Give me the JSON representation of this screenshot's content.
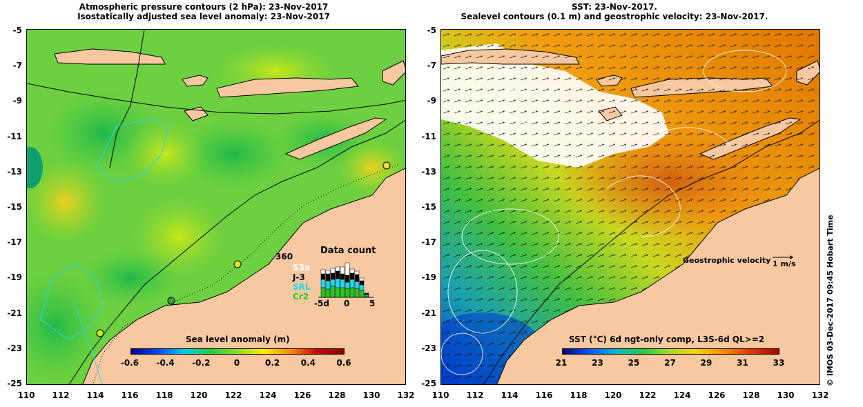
{
  "left": {
    "title1": "Atmospheric pressure contours (2 hPa): 23-Nov-2017",
    "title2": "Isostatically adjusted sea level anomaly: 23-Nov-2017",
    "colorbar_title": "Sea level anomaly (m)",
    "colorbar_ticks": [
      "-0.6",
      "-0.4",
      "-0.2",
      "0",
      "0.2",
      "0.4",
      "0.6"
    ],
    "data_count": {
      "title": "Data count",
      "ymax": "360",
      "satellites": [
        {
          "name": "S3a",
          "color": "#ffffff"
        },
        {
          "name": "J-3",
          "color": "#000000"
        },
        {
          "name": "SRL",
          "color": "#22d8f0"
        },
        {
          "name": "Cr2",
          "color": "#22cc22"
        }
      ],
      "x_ticks": [
        "-5d",
        "0",
        "5"
      ]
    }
  },
  "right": {
    "title1": "SST: 23-Nov-2017.",
    "title2": "Sealevel contours (0.1 m) and geostrophic velocity: 23-Nov-2017.",
    "colorbar_title": "SST (°C) 6d ngt-only comp, L3S-6d QL>=2",
    "colorbar_ticks": [
      "21",
      "23",
      "25",
      "27",
      "29",
      "31",
      "33"
    ],
    "geostrophic_label": "Geostrophic velocity",
    "scale_label": "1 m/s"
  },
  "axes": {
    "y_ticks": [
      "-5",
      "-7",
      "-9",
      "-11",
      "-13",
      "-15",
      "-17",
      "-19",
      "-21",
      "-23",
      "-25"
    ],
    "x_ticks_left": [
      "110",
      "112",
      "114",
      "116",
      "118",
      "120",
      "122",
      "124",
      "126",
      "128",
      "130",
      "132"
    ],
    "x_ticks_right": [
      "110",
      "112",
      "114",
      "116",
      "118",
      "120",
      "122",
      "124",
      "126",
      "128",
      "130",
      "132"
    ]
  },
  "side_text": "© IMOS 03-Dec-2017 09:45 Hobart Time",
  "colors": {
    "land": "#f8c8a0",
    "sla_ramp": [
      "#000088",
      "#0044ff",
      "#00ccee",
      "#22cc44",
      "#88dd22",
      "#ffee00",
      "#ff8800",
      "#cc0000",
      "#880000"
    ],
    "sst_ramp": [
      "#000077",
      "#0055ff",
      "#00bbcc",
      "#22cc44",
      "#aadd22",
      "#ffcc00",
      "#ff8800",
      "#dd3300",
      "#aa0000"
    ]
  }
}
